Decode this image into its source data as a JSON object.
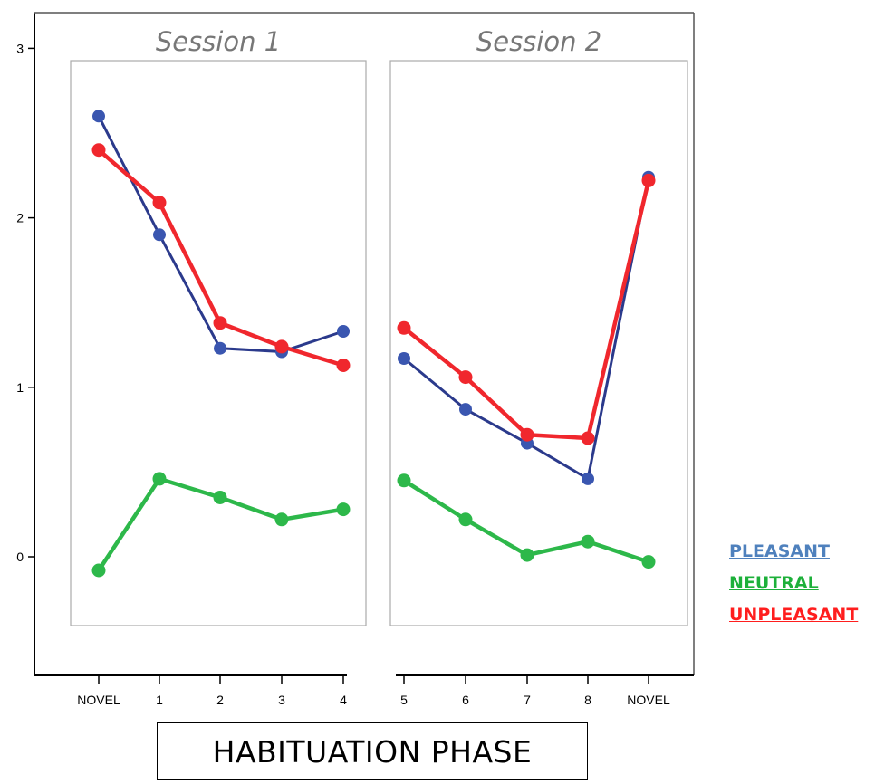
{
  "chart_data": {
    "type": "line",
    "xlabel": "HABITUATION PHASE",
    "ylim": [
      -0.5,
      3.0
    ],
    "yticks": [
      "0",
      "1",
      "2",
      "3"
    ],
    "panels": [
      {
        "title": "Session 1",
        "categories": [
          "NOVEL",
          "1",
          "2",
          "3",
          "4"
        ],
        "series": [
          {
            "name": "PLEASANT",
            "values": [
              2.6,
              1.9,
              1.23,
              1.21,
              1.33
            ]
          },
          {
            "name": "NEUTRAL",
            "values": [
              -0.08,
              0.46,
              0.35,
              0.22,
              0.28
            ]
          },
          {
            "name": "UNPLEASANT",
            "values": [
              2.4,
              2.09,
              1.38,
              1.24,
              1.13
            ]
          }
        ]
      },
      {
        "title": "Session 2",
        "categories": [
          "5",
          "6",
          "7",
          "8",
          "NOVEL"
        ],
        "series": [
          {
            "name": "PLEASANT",
            "values": [
              1.17,
              0.87,
              0.67,
              0.46,
              2.24
            ]
          },
          {
            "name": "NEUTRAL",
            "values": [
              0.45,
              0.22,
              0.01,
              0.09,
              -0.03
            ]
          },
          {
            "name": "UNPLEASANT",
            "values": [
              1.35,
              1.06,
              0.72,
              0.7,
              2.22
            ]
          }
        ]
      }
    ],
    "legend": {
      "placement": "right",
      "entries": [
        {
          "label": "PLEASANT",
          "color": "#4f81bd"
        },
        {
          "label": "NEUTRAL",
          "color": "#1db03a"
        },
        {
          "label": "UNPLEASANT",
          "color": "#ff1e1e"
        }
      ]
    },
    "colors": {
      "PLEASANT": "#2b3a8c",
      "PLEASANT_marker": "#3a56b0",
      "NEUTRAL": "#2db84a",
      "UNPLEASANT": "#f0272d"
    }
  }
}
